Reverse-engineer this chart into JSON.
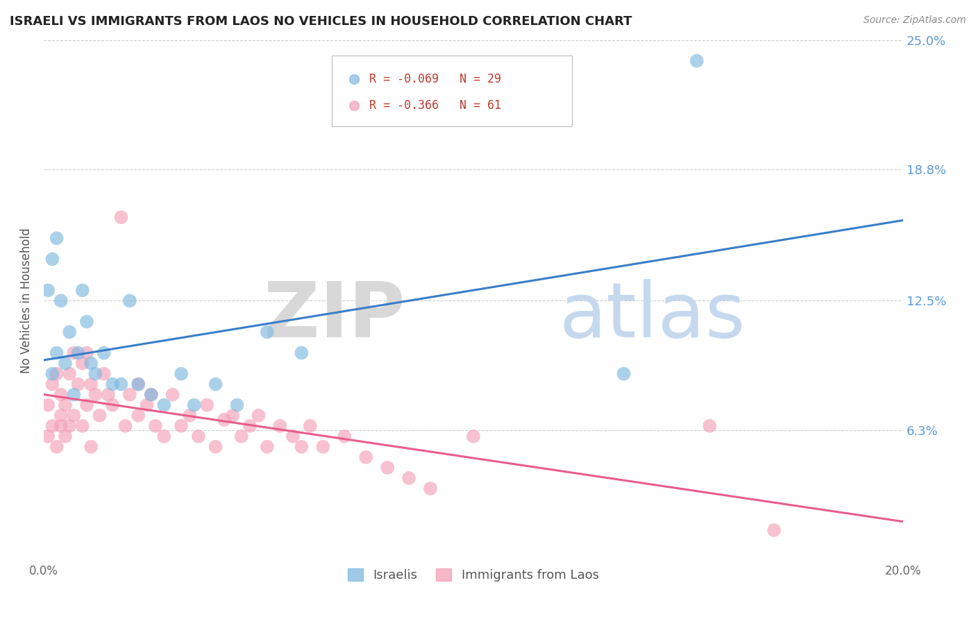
{
  "title": "ISRAELI VS IMMIGRANTS FROM LAOS NO VEHICLES IN HOUSEHOLD CORRELATION CHART",
  "source": "Source: ZipAtlas.com",
  "ylabel": "No Vehicles in Household",
  "xlim": [
    0.0,
    0.2
  ],
  "ylim": [
    0.0,
    0.25
  ],
  "yticks": [
    0.063,
    0.125,
    0.188,
    0.25
  ],
  "ytick_labels": [
    "6.3%",
    "12.5%",
    "18.8%",
    "25.0%"
  ],
  "color_israeli": "#7fb9e0",
  "color_laos": "#f4a0b8",
  "background_color": "#ffffff",
  "israelis_x": [
    0.001,
    0.002,
    0.002,
    0.003,
    0.003,
    0.004,
    0.005,
    0.006,
    0.007,
    0.008,
    0.009,
    0.01,
    0.011,
    0.012,
    0.014,
    0.016,
    0.018,
    0.02,
    0.022,
    0.025,
    0.028,
    0.032,
    0.035,
    0.04,
    0.045,
    0.052,
    0.06,
    0.135,
    0.152
  ],
  "israelis_y": [
    0.13,
    0.145,
    0.09,
    0.155,
    0.1,
    0.125,
    0.095,
    0.11,
    0.08,
    0.1,
    0.13,
    0.115,
    0.095,
    0.09,
    0.1,
    0.085,
    0.085,
    0.125,
    0.085,
    0.08,
    0.075,
    0.09,
    0.075,
    0.085,
    0.075,
    0.11,
    0.1,
    0.09,
    0.24
  ],
  "laos_x": [
    0.001,
    0.001,
    0.002,
    0.002,
    0.003,
    0.003,
    0.004,
    0.004,
    0.004,
    0.005,
    0.005,
    0.006,
    0.006,
    0.007,
    0.007,
    0.008,
    0.009,
    0.009,
    0.01,
    0.01,
    0.011,
    0.011,
    0.012,
    0.013,
    0.014,
    0.015,
    0.016,
    0.018,
    0.019,
    0.02,
    0.022,
    0.022,
    0.024,
    0.025,
    0.026,
    0.028,
    0.03,
    0.032,
    0.034,
    0.036,
    0.038,
    0.04,
    0.042,
    0.044,
    0.046,
    0.048,
    0.05,
    0.052,
    0.055,
    0.058,
    0.06,
    0.062,
    0.065,
    0.07,
    0.075,
    0.08,
    0.085,
    0.09,
    0.1,
    0.155,
    0.17
  ],
  "laos_y": [
    0.075,
    0.06,
    0.085,
    0.065,
    0.09,
    0.055,
    0.08,
    0.065,
    0.07,
    0.075,
    0.06,
    0.09,
    0.065,
    0.1,
    0.07,
    0.085,
    0.095,
    0.065,
    0.1,
    0.075,
    0.085,
    0.055,
    0.08,
    0.07,
    0.09,
    0.08,
    0.075,
    0.165,
    0.065,
    0.08,
    0.085,
    0.07,
    0.075,
    0.08,
    0.065,
    0.06,
    0.08,
    0.065,
    0.07,
    0.06,
    0.075,
    0.055,
    0.068,
    0.07,
    0.06,
    0.065,
    0.07,
    0.055,
    0.065,
    0.06,
    0.055,
    0.065,
    0.055,
    0.06,
    0.05,
    0.045,
    0.04,
    0.035,
    0.06,
    0.065,
    0.015
  ]
}
